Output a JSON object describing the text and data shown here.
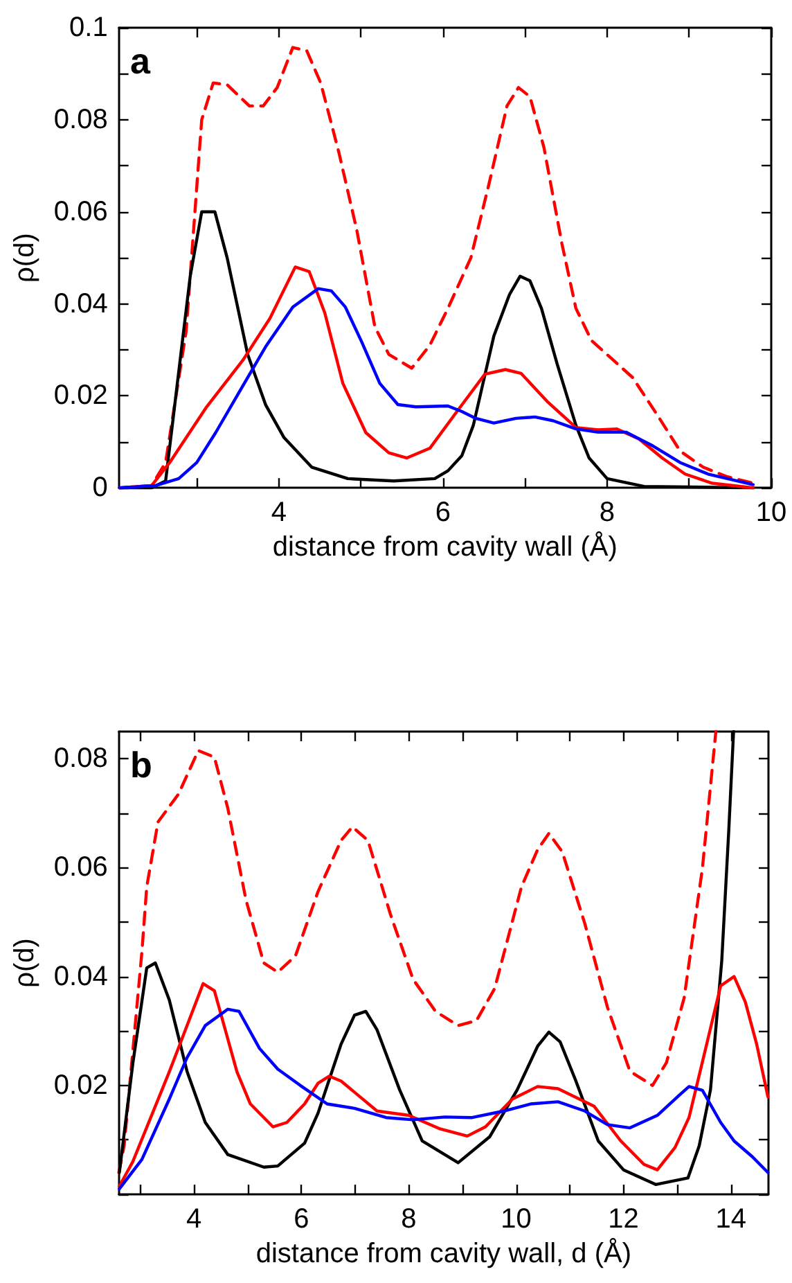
{
  "chart_data": [
    {
      "type": "line",
      "xlabel": "distance from cavity wall (Å)",
      "ylabel": "ρ(d)",
      "annotations": [
        "a"
      ],
      "xlim": [
        2.05,
        10
      ],
      "ylim": [
        0,
        0.1
      ],
      "xticks": [
        {
          "value": 3,
          "label": null
        },
        4,
        {
          "value": 5,
          "label": null
        },
        6,
        {
          "value": 7,
          "label": null
        },
        8,
        {
          "value": 9,
          "label": null
        },
        10
      ],
      "yticks": [
        0,
        {
          "value": 0.01,
          "label": null
        },
        0.02,
        {
          "value": 0.03,
          "label": null
        },
        0.04,
        {
          "value": 0.05,
          "label": null
        },
        0.06,
        {
          "value": 0.07,
          "label": null
        },
        0.08,
        {
          "value": 0.09,
          "label": null
        },
        0.1
      ],
      "grid": false,
      "marker": "none",
      "series": [
        {
          "color": "#ff0000",
          "line_style": "dashed",
          "x": [
            2.06,
            2.45,
            2.62,
            2.87,
            3.06,
            3.2,
            3.37,
            3.64,
            3.81,
            3.98,
            4.17,
            4.34,
            4.51,
            4.73,
            4.95,
            5.17,
            5.34,
            5.62,
            5.84,
            6.06,
            6.34,
            6.56,
            6.78,
            6.92,
            7.06,
            7.23,
            7.45,
            7.62,
            7.81,
            8.06,
            8.31,
            8.62,
            8.89,
            9.17,
            9.45,
            9.78
          ],
          "values": [
            0,
            0.0005,
            0.0055,
            0.034,
            0.08,
            0.088,
            0.0876,
            0.083,
            0.083,
            0.087,
            0.0957,
            0.095,
            0.088,
            0.073,
            0.056,
            0.035,
            0.029,
            0.026,
            0.031,
            0.039,
            0.05,
            0.066,
            0.083,
            0.087,
            0.085,
            0.074,
            0.053,
            0.039,
            0.032,
            0.028,
            0.024,
            0.0156,
            0.008,
            0.0045,
            0.0025,
            0.001
          ]
        },
        {
          "color": "#000000",
          "line_style": "solid",
          "x": [
            2.06,
            2.45,
            2.62,
            2.92,
            3.06,
            3.22,
            3.37,
            3.62,
            3.84,
            4.06,
            4.4,
            4.84,
            5.4,
            5.9,
            6.06,
            6.23,
            6.37,
            6.62,
            6.81,
            6.94,
            7.06,
            7.2,
            7.39,
            7.62,
            7.78,
            8.0,
            8.45,
            9.78
          ],
          "values": [
            0,
            0,
            0.0015,
            0.046,
            0.06,
            0.06,
            0.05,
            0.029,
            0.018,
            0.011,
            0.0045,
            0.002,
            0.0015,
            0.002,
            0.0037,
            0.007,
            0.0136,
            0.033,
            0.042,
            0.046,
            0.045,
            0.039,
            0.027,
            0.0136,
            0.0065,
            0.002,
            0.0003,
            0
          ]
        },
        {
          "color": "#ff0000",
          "line_style": "solid",
          "x": [
            2.06,
            2.45,
            2.67,
            3.12,
            3.56,
            3.89,
            4.2,
            4.37,
            4.56,
            4.78,
            5.06,
            5.34,
            5.56,
            5.84,
            6.17,
            6.51,
            6.76,
            6.95,
            7.28,
            7.62,
            7.89,
            8.12,
            8.39,
            8.67,
            8.95,
            9.28,
            9.78
          ],
          "values": [
            0,
            0.0005,
            0.0055,
            0.0176,
            0.0277,
            0.0368,
            0.048,
            0.047,
            0.038,
            0.0227,
            0.012,
            0.0076,
            0.0065,
            0.0086,
            0.0166,
            0.0247,
            0.0257,
            0.0249,
            0.0186,
            0.0131,
            0.0126,
            0.0128,
            0.0106,
            0.0065,
            0.003,
            0.001,
            0
          ]
        },
        {
          "color": "#0000ff",
          "line_style": "solid",
          "x": [
            2.06,
            2.5,
            2.78,
            3.0,
            3.23,
            3.51,
            3.84,
            4.17,
            4.48,
            4.64,
            4.81,
            5.01,
            5.23,
            5.45,
            5.67,
            6.06,
            6.23,
            6.4,
            6.62,
            6.89,
            7.12,
            7.34,
            7.62,
            7.89,
            8.23,
            8.56,
            8.89,
            9.23,
            9.78
          ],
          "values": [
            0,
            0.0005,
            0.002,
            0.0055,
            0.012,
            0.0206,
            0.0307,
            0.0393,
            0.0433,
            0.0428,
            0.0393,
            0.0317,
            0.0227,
            0.0181,
            0.0176,
            0.0178,
            0.0166,
            0.0151,
            0.0141,
            0.0151,
            0.0154,
            0.0146,
            0.0128,
            0.0121,
            0.0121,
            0.0091,
            0.0055,
            0.003,
            0.0007
          ]
        }
      ]
    },
    {
      "type": "line",
      "xlabel": "distance from cavity wall, d (Å)",
      "ylabel": "ρ(d)",
      "annotations": [
        "b"
      ],
      "xlim": [
        2.6,
        14.7
      ],
      "ylim": [
        0,
        0.085
      ],
      "xticks": [
        {
          "value": 3,
          "label": null
        },
        4,
        {
          "value": 5,
          "label": null
        },
        6,
        {
          "value": 7,
          "label": null
        },
        8,
        {
          "value": 9,
          "label": null
        },
        10,
        {
          "value": 11,
          "label": null
        },
        12,
        {
          "value": 13,
          "label": null
        },
        14
      ],
      "yticks": [
        {
          "value": 0,
          "label": null
        },
        {
          "value": 0.01,
          "label": null
        },
        0.02,
        {
          "value": 0.03,
          "label": null
        },
        0.04,
        {
          "value": 0.05,
          "label": null
        },
        0.06,
        {
          "value": 0.07,
          "label": null
        },
        0.08
      ],
      "grid": false,
      "marker": "none",
      "series": [
        {
          "color": "#ff0000",
          "line_style": "dashed",
          "x": [
            2.6,
            2.7,
            3.03,
            3.12,
            3.33,
            3.71,
            4.08,
            4.38,
            4.63,
            4.97,
            5.3,
            5.56,
            5.89,
            6.31,
            6.74,
            6.95,
            7.24,
            7.66,
            8.08,
            8.5,
            8.92,
            9.26,
            9.6,
            10.1,
            10.4,
            10.61,
            10.86,
            11.28,
            11.7,
            12.12,
            12.54,
            12.8,
            13.13,
            13.47,
            13.72
          ],
          "values": [
            0.004,
            0.009,
            0.0446,
            0.0565,
            0.0684,
            0.0735,
            0.0815,
            0.0803,
            0.0709,
            0.054,
            0.0425,
            0.0408,
            0.0438,
            0.0556,
            0.065,
            0.0675,
            0.065,
            0.0514,
            0.0395,
            0.0336,
            0.031,
            0.0319,
            0.0378,
            0.0565,
            0.0633,
            0.0663,
            0.0629,
            0.0497,
            0.0344,
            0.0226,
            0.02,
            0.0242,
            0.0361,
            0.0599,
            0.085
          ]
        },
        {
          "color": "#000000",
          "line_style": "solid",
          "x": [
            2.61,
            2.86,
            3.12,
            3.28,
            3.54,
            3.87,
            4.21,
            4.63,
            5.3,
            5.56,
            6.06,
            6.31,
            6.74,
            6.99,
            7.2,
            7.41,
            7.83,
            8.25,
            8.92,
            9.51,
            10.02,
            10.4,
            10.61,
            10.82,
            11.11,
            11.53,
            12.0,
            12.6,
            13.2,
            13.41,
            13.62,
            13.83,
            13.96,
            14.05
          ],
          "values": [
            0.004,
            0.024,
            0.0416,
            0.0425,
            0.0357,
            0.0226,
            0.0132,
            0.0073,
            0.005,
            0.0052,
            0.0094,
            0.0149,
            0.0276,
            0.0329,
            0.0336,
            0.0302,
            0.0192,
            0.0098,
            0.0058,
            0.0106,
            0.0192,
            0.0272,
            0.0298,
            0.028,
            0.0209,
            0.0098,
            0.0045,
            0.0018,
            0.003,
            0.0089,
            0.0192,
            0.0429,
            0.0667,
            0.085
          ]
        },
        {
          "color": "#ff0000",
          "line_style": "solid",
          "x": [
            2.61,
            2.86,
            3.54,
            4.17,
            4.38,
            4.8,
            5.05,
            5.47,
            5.73,
            6.06,
            6.31,
            6.52,
            6.74,
            7.41,
            8.0,
            8.59,
            9.09,
            9.43,
            9.93,
            10.4,
            10.78,
            11.45,
            11.95,
            12.38,
            12.63,
            12.96,
            13.22,
            13.55,
            13.81,
            14.06,
            14.27,
            14.48,
            14.69
          ],
          "values": [
            0.0015,
            0.006,
            0.0225,
            0.0387,
            0.0374,
            0.0225,
            0.0166,
            0.0124,
            0.0132,
            0.0166,
            0.0204,
            0.0217,
            0.0208,
            0.0153,
            0.0145,
            0.012,
            0.0107,
            0.0124,
            0.0175,
            0.0198,
            0.0194,
            0.0162,
            0.0098,
            0.0055,
            0.0045,
            0.0086,
            0.0141,
            0.0276,
            0.0383,
            0.04,
            0.0353,
            0.0276,
            0.0179
          ]
        },
        {
          "color": "#0000ff",
          "line_style": "solid",
          "x": [
            2.61,
            3.03,
            3.54,
            3.87,
            4.21,
            4.63,
            4.84,
            5.22,
            5.56,
            5.98,
            6.48,
            6.99,
            7.58,
            8.08,
            8.67,
            9.18,
            9.77,
            10.27,
            10.78,
            11.28,
            11.7,
            12.12,
            12.63,
            13.05,
            13.22,
            13.47,
            13.81,
            14.06,
            14.4,
            14.69
          ],
          "values": [
            0.001,
            0.0064,
            0.0175,
            0.0251,
            0.031,
            0.034,
            0.0336,
            0.0268,
            0.023,
            0.02,
            0.0166,
            0.0158,
            0.0141,
            0.0137,
            0.0142,
            0.0141,
            0.0153,
            0.0166,
            0.017,
            0.0153,
            0.0128,
            0.0122,
            0.0145,
            0.0183,
            0.0198,
            0.0191,
            0.0132,
            0.0098,
            0.0069,
            0.004
          ]
        }
      ]
    }
  ]
}
